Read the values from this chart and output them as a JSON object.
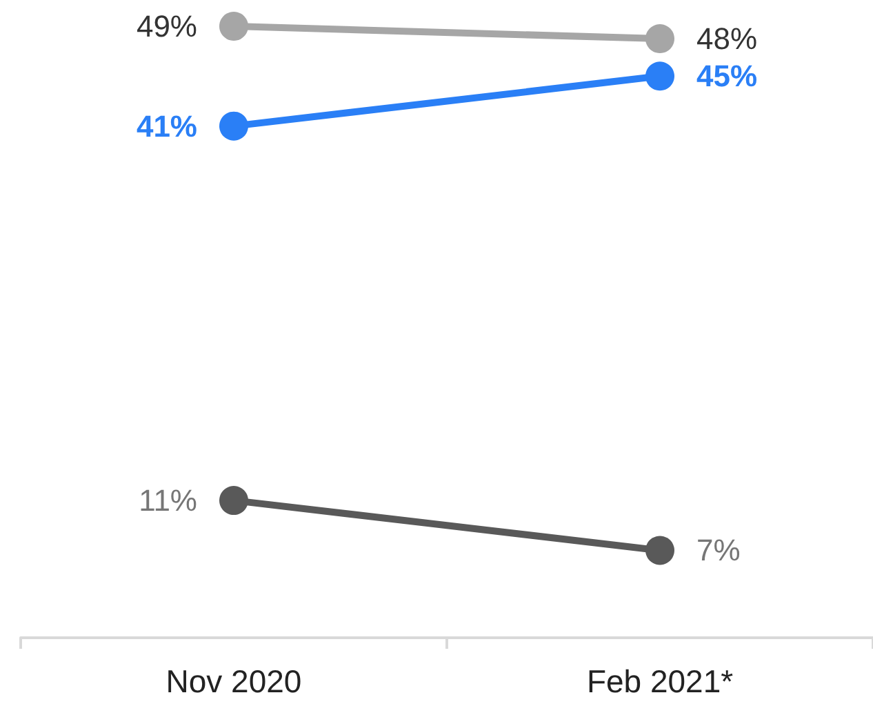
{
  "chart_data": {
    "type": "line",
    "categories": [
      "Nov 2020",
      "Feb 2021*"
    ],
    "series": [
      {
        "color": "#a6a6a6",
        "values": [
          49,
          48
        ],
        "value_labels": [
          "49%",
          "48%"
        ]
      },
      {
        "color": "#2a7ff6",
        "values": [
          41,
          45
        ],
        "value_labels": [
          "41%",
          "45%"
        ]
      },
      {
        "color": "#595959",
        "values": [
          11,
          7
        ],
        "value_labels": [
          "11%",
          "7%"
        ]
      }
    ],
    "marker": "circle",
    "line_style": "solid",
    "grid": false
  }
}
